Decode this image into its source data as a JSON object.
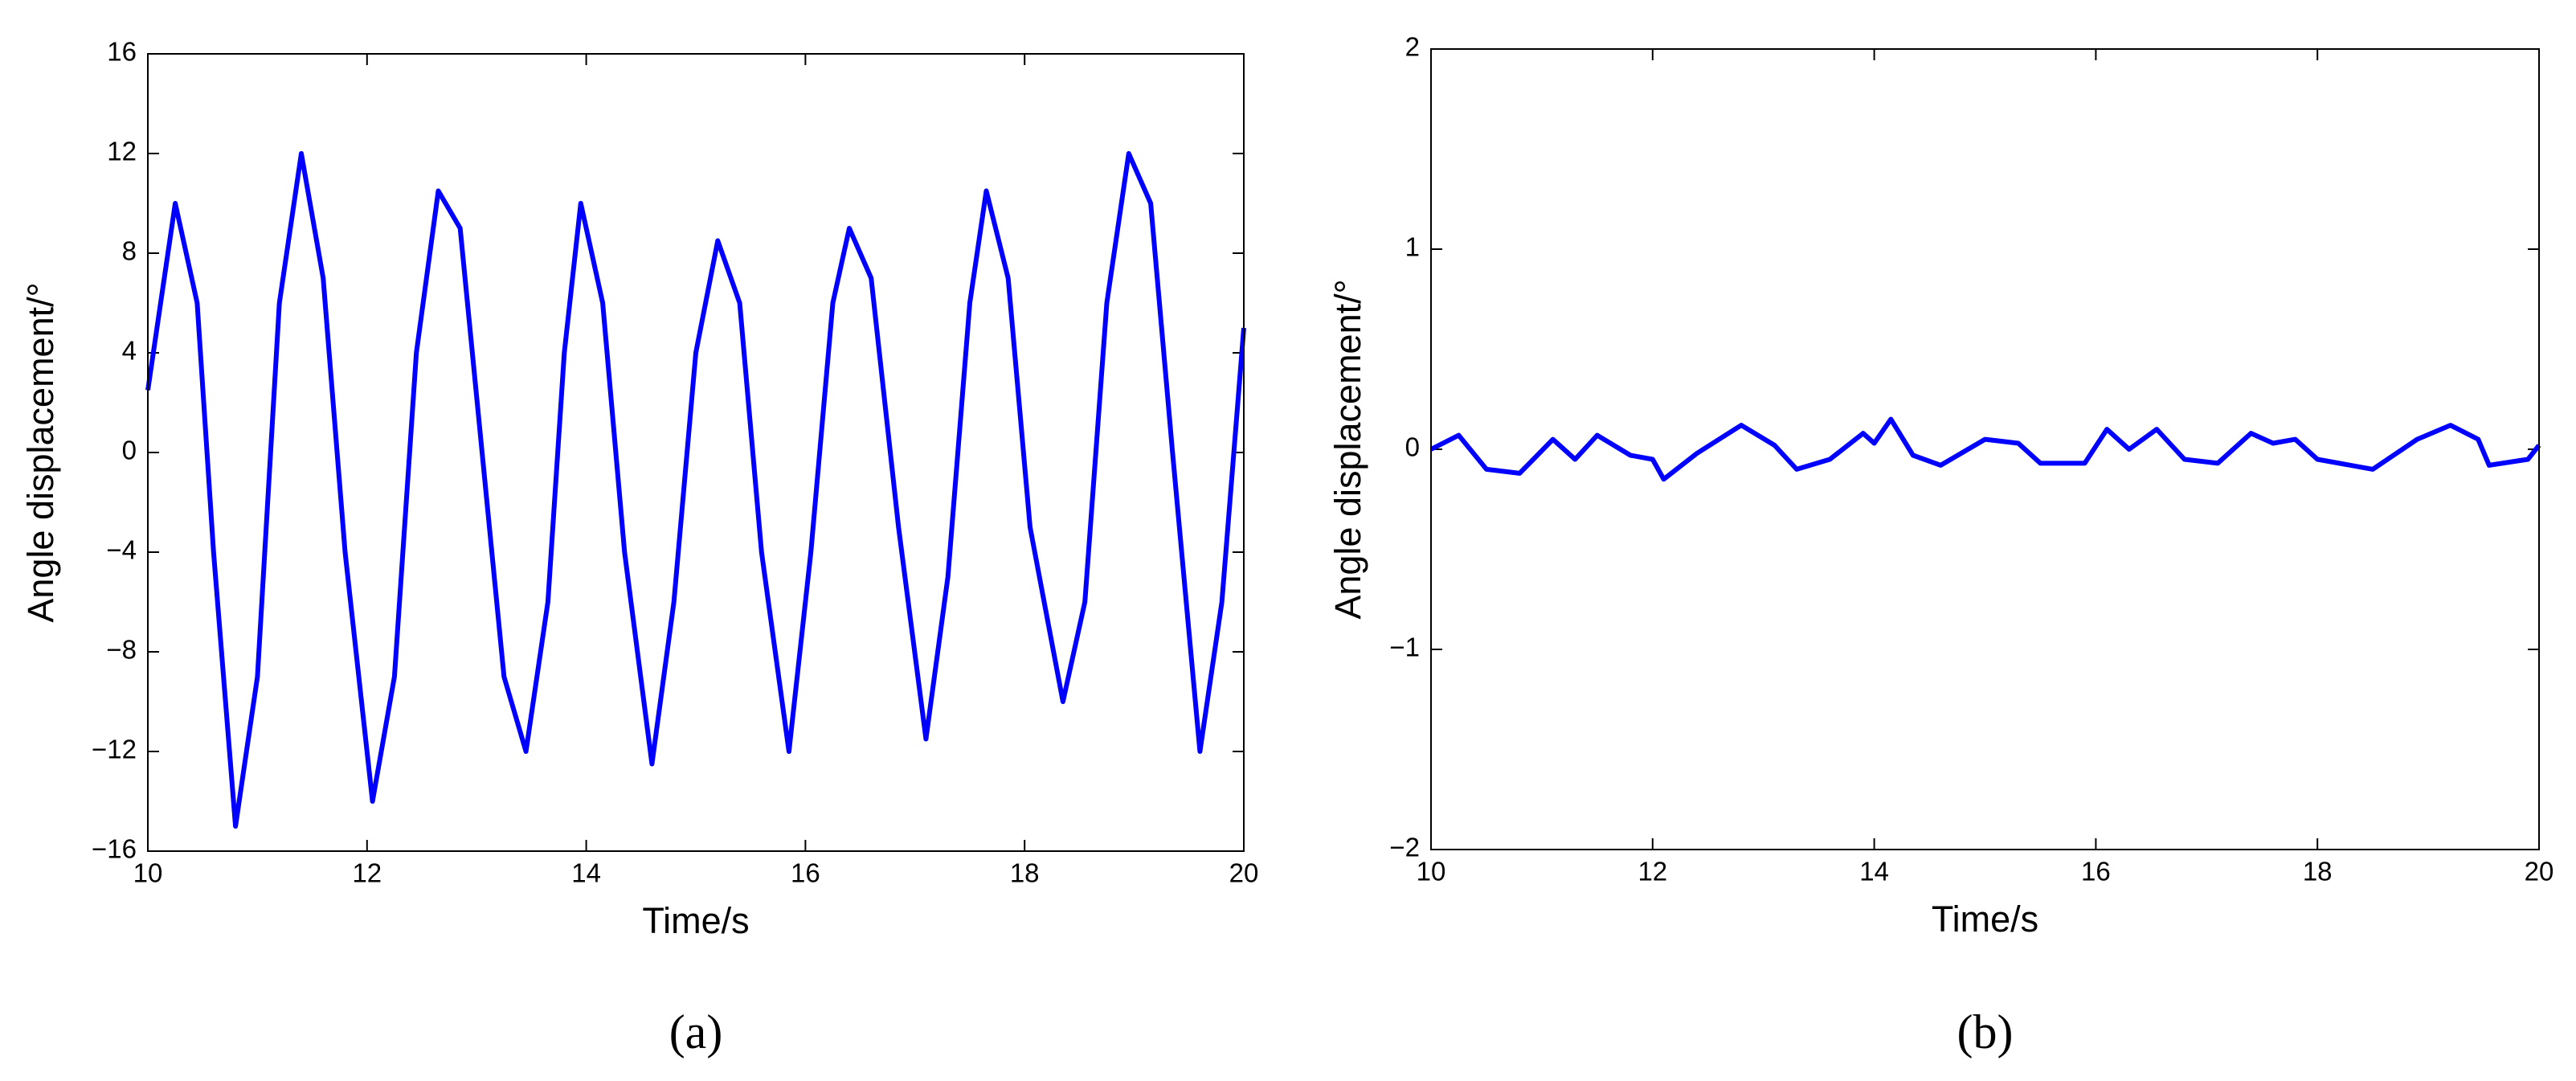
{
  "chart_data": [
    {
      "type": "line",
      "panel_label": "(a)",
      "xlabel": "Time/s",
      "ylabel": "Angle displacement/°",
      "color": "#0000ff",
      "x": [
        10.0,
        10.25,
        10.45,
        10.6,
        10.8,
        11.0,
        11.2,
        11.4,
        11.6,
        11.8,
        12.05,
        12.25,
        12.45,
        12.65,
        12.85,
        13.05,
        13.25,
        13.45,
        13.65,
        13.8,
        13.95,
        14.15,
        14.35,
        14.6,
        14.8,
        15.0,
        15.2,
        15.4,
        15.6,
        15.85,
        16.05,
        16.25,
        16.4,
        16.6,
        16.85,
        17.1,
        17.3,
        17.5,
        17.65,
        17.85,
        18.05,
        18.35,
        18.55,
        18.75,
        18.95,
        19.15,
        19.35,
        19.6,
        19.8,
        20.0
      ],
      "values": [
        2.5,
        10,
        6,
        -4,
        -15,
        -9,
        6,
        12,
        7,
        -4,
        -14,
        -9,
        4,
        10.5,
        9,
        0,
        -9,
        -12,
        -6,
        4,
        10,
        6,
        -4,
        -12.5,
        -6,
        4,
        8.5,
        6,
        -4,
        -12,
        -4,
        6,
        9,
        7,
        -3,
        -11.5,
        -5,
        6,
        10.5,
        7,
        -3,
        -10,
        -6,
        6,
        12,
        10,
        0,
        -12,
        -6,
        5
      ],
      "xlim": [
        10,
        20
      ],
      "ylim": [
        -16,
        16
      ],
      "xticks": [
        10,
        12,
        14,
        16,
        18,
        20
      ],
      "yticks": [
        {
          "value": -16,
          "label": "−16"
        },
        {
          "value": -12,
          "label": "−12"
        },
        {
          "value": -8,
          "label": "−8"
        },
        {
          "value": -4,
          "label": "−4"
        },
        0,
        4,
        8,
        12,
        16
      ]
    },
    {
      "type": "line",
      "panel_label": "(b)",
      "xlabel": "Time/s",
      "ylabel": "Angle displacement/°",
      "color": "#0000ff",
      "x": [
        10.0,
        10.25,
        10.5,
        10.8,
        11.1,
        11.3,
        11.5,
        11.8,
        12.0,
        12.1,
        12.4,
        12.8,
        13.1,
        13.3,
        13.6,
        13.9,
        14.0,
        14.15,
        14.35,
        14.6,
        15.0,
        15.3,
        15.5,
        15.9,
        16.1,
        16.3,
        16.55,
        16.8,
        17.1,
        17.4,
        17.6,
        17.8,
        18.0,
        18.5,
        18.9,
        19.2,
        19.45,
        19.55,
        19.9,
        20.0
      ],
      "values": [
        0,
        0.07,
        -0.1,
        -0.12,
        0.05,
        -0.05,
        0.07,
        -0.03,
        -0.05,
        -0.15,
        -0.02,
        0.12,
        0.02,
        -0.1,
        -0.05,
        0.08,
        0.03,
        0.15,
        -0.03,
        -0.08,
        0.05,
        0.03,
        -0.07,
        -0.07,
        0.1,
        0,
        0.1,
        -0.05,
        -0.07,
        0.08,
        0.03,
        0.05,
        -0.05,
        -0.1,
        0.05,
        0.12,
        0.05,
        -0.08,
        -0.05,
        0.02
      ],
      "xlim": [
        10,
        20
      ],
      "ylim": [
        -2,
        2
      ],
      "xticks": [
        10,
        12,
        14,
        16,
        18,
        20
      ],
      "yticks": [
        {
          "value": -2,
          "label": "−2"
        },
        {
          "value": -1,
          "label": "−1"
        },
        0,
        1,
        2
      ]
    }
  ]
}
